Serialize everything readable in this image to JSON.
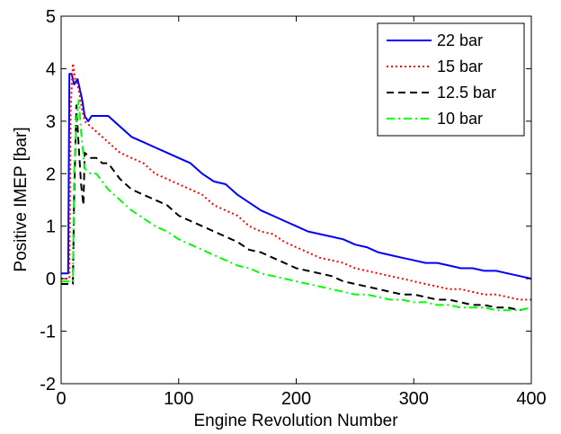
{
  "chart_data": {
    "type": "line",
    "title": "",
    "xlabel": "Engine Revolution Number",
    "ylabel": "Positive IMEP [bar]",
    "xlim": [
      0,
      400
    ],
    "ylim": [
      -2,
      5
    ],
    "xticks": [
      "0",
      "100",
      "200",
      "300",
      "400"
    ],
    "yticks": [
      "-2",
      "-1",
      "0",
      "1",
      "2",
      "3",
      "4",
      "5"
    ],
    "grid": false,
    "legend_position": "top-right",
    "series": [
      {
        "name": "22 bar",
        "color": "#0000ff",
        "style": "solid",
        "points": [
          [
            0,
            0.1
          ],
          [
            6,
            0.1
          ],
          [
            7,
            3.9
          ],
          [
            9,
            3.9
          ],
          [
            11,
            3.7
          ],
          [
            14,
            3.8
          ],
          [
            18,
            3.4
          ],
          [
            20,
            3.1
          ],
          [
            23,
            3.0
          ],
          [
            26,
            3.1
          ],
          [
            30,
            3.1
          ],
          [
            40,
            3.1
          ],
          [
            50,
            2.9
          ],
          [
            60,
            2.7
          ],
          [
            70,
            2.6
          ],
          [
            80,
            2.5
          ],
          [
            90,
            2.4
          ],
          [
            100,
            2.3
          ],
          [
            110,
            2.2
          ],
          [
            120,
            2.0
          ],
          [
            130,
            1.85
          ],
          [
            140,
            1.8
          ],
          [
            150,
            1.6
          ],
          [
            160,
            1.45
          ],
          [
            170,
            1.3
          ],
          [
            180,
            1.2
          ],
          [
            190,
            1.1
          ],
          [
            200,
            1.0
          ],
          [
            210,
            0.9
          ],
          [
            220,
            0.85
          ],
          [
            230,
            0.8
          ],
          [
            240,
            0.75
          ],
          [
            250,
            0.65
          ],
          [
            260,
            0.6
          ],
          [
            270,
            0.5
          ],
          [
            280,
            0.45
          ],
          [
            290,
            0.4
          ],
          [
            300,
            0.35
          ],
          [
            310,
            0.3
          ],
          [
            320,
            0.3
          ],
          [
            330,
            0.25
          ],
          [
            340,
            0.2
          ],
          [
            350,
            0.2
          ],
          [
            360,
            0.15
          ],
          [
            370,
            0.15
          ],
          [
            380,
            0.1
          ],
          [
            390,
            0.05
          ],
          [
            400,
            0.0
          ]
        ]
      },
      {
        "name": "15 bar",
        "color": "#ff0000",
        "style": "dotted",
        "points": [
          [
            0,
            0.0
          ],
          [
            7,
            0.0
          ],
          [
            8,
            3.2
          ],
          [
            10,
            4.1
          ],
          [
            12,
            3.8
          ],
          [
            15,
            3.6
          ],
          [
            18,
            3.2
          ],
          [
            20,
            3.0
          ],
          [
            25,
            2.9
          ],
          [
            30,
            2.8
          ],
          [
            40,
            2.6
          ],
          [
            50,
            2.4
          ],
          [
            60,
            2.3
          ],
          [
            70,
            2.2
          ],
          [
            80,
            2.0
          ],
          [
            90,
            1.9
          ],
          [
            100,
            1.8
          ],
          [
            110,
            1.7
          ],
          [
            120,
            1.6
          ],
          [
            130,
            1.4
          ],
          [
            140,
            1.3
          ],
          [
            150,
            1.2
          ],
          [
            160,
            1.0
          ],
          [
            170,
            0.9
          ],
          [
            180,
            0.85
          ],
          [
            190,
            0.7
          ],
          [
            200,
            0.6
          ],
          [
            210,
            0.5
          ],
          [
            220,
            0.4
          ],
          [
            230,
            0.35
          ],
          [
            240,
            0.3
          ],
          [
            250,
            0.2
          ],
          [
            260,
            0.15
          ],
          [
            270,
            0.1
          ],
          [
            280,
            0.05
          ],
          [
            290,
            0.0
          ],
          [
            300,
            -0.05
          ],
          [
            310,
            -0.1
          ],
          [
            320,
            -0.15
          ],
          [
            330,
            -0.2
          ],
          [
            340,
            -0.2
          ],
          [
            350,
            -0.25
          ],
          [
            360,
            -0.3
          ],
          [
            370,
            -0.3
          ],
          [
            380,
            -0.35
          ],
          [
            390,
            -0.4
          ],
          [
            400,
            -0.4
          ]
        ]
      },
      {
        "name": "12.5 bar",
        "color": "#000000",
        "style": "dashed",
        "points": [
          [
            0,
            -0.1
          ],
          [
            8,
            -0.1
          ],
          [
            10,
            -0.1
          ],
          [
            11,
            1.5
          ],
          [
            13,
            3.3
          ],
          [
            15,
            2.5
          ],
          [
            17,
            1.8
          ],
          [
            19,
            1.4
          ],
          [
            20,
            2.4
          ],
          [
            25,
            2.3
          ],
          [
            30,
            2.3
          ],
          [
            35,
            2.2
          ],
          [
            40,
            2.2
          ],
          [
            50,
            1.9
          ],
          [
            60,
            1.7
          ],
          [
            70,
            1.6
          ],
          [
            80,
            1.5
          ],
          [
            90,
            1.4
          ],
          [
            100,
            1.2
          ],
          [
            110,
            1.1
          ],
          [
            120,
            1.0
          ],
          [
            130,
            0.9
          ],
          [
            140,
            0.8
          ],
          [
            150,
            0.7
          ],
          [
            160,
            0.55
          ],
          [
            170,
            0.5
          ],
          [
            180,
            0.4
          ],
          [
            190,
            0.3
          ],
          [
            200,
            0.2
          ],
          [
            210,
            0.15
          ],
          [
            220,
            0.1
          ],
          [
            230,
            0.05
          ],
          [
            240,
            -0.05
          ],
          [
            250,
            -0.1
          ],
          [
            260,
            -0.15
          ],
          [
            270,
            -0.2
          ],
          [
            280,
            -0.25
          ],
          [
            290,
            -0.3
          ],
          [
            300,
            -0.3
          ],
          [
            310,
            -0.35
          ],
          [
            320,
            -0.4
          ],
          [
            330,
            -0.4
          ],
          [
            340,
            -0.45
          ],
          [
            350,
            -0.5
          ],
          [
            360,
            -0.5
          ],
          [
            370,
            -0.55
          ],
          [
            380,
            -0.55
          ],
          [
            390,
            -0.6
          ],
          [
            400,
            -0.55
          ]
        ]
      },
      {
        "name": "10 bar",
        "color": "#00ff00",
        "style": "dashdot",
        "points": [
          [
            0,
            -0.05
          ],
          [
            10,
            -0.05
          ],
          [
            11,
            2.0
          ],
          [
            13,
            3.0
          ],
          [
            15,
            3.4
          ],
          [
            17,
            2.8
          ],
          [
            20,
            2.1
          ],
          [
            25,
            2.0
          ],
          [
            30,
            2.0
          ],
          [
            40,
            1.7
          ],
          [
            50,
            1.5
          ],
          [
            60,
            1.3
          ],
          [
            70,
            1.15
          ],
          [
            80,
            1.0
          ],
          [
            90,
            0.9
          ],
          [
            100,
            0.75
          ],
          [
            110,
            0.65
          ],
          [
            120,
            0.55
          ],
          [
            130,
            0.45
          ],
          [
            140,
            0.35
          ],
          [
            150,
            0.25
          ],
          [
            160,
            0.2
          ],
          [
            170,
            0.1
          ],
          [
            180,
            0.05
          ],
          [
            190,
            0.0
          ],
          [
            200,
            -0.05
          ],
          [
            210,
            -0.1
          ],
          [
            220,
            -0.15
          ],
          [
            230,
            -0.2
          ],
          [
            240,
            -0.25
          ],
          [
            250,
            -0.3
          ],
          [
            260,
            -0.3
          ],
          [
            270,
            -0.35
          ],
          [
            280,
            -0.4
          ],
          [
            290,
            -0.4
          ],
          [
            300,
            -0.45
          ],
          [
            310,
            -0.45
          ],
          [
            320,
            -0.5
          ],
          [
            330,
            -0.5
          ],
          [
            340,
            -0.55
          ],
          [
            350,
            -0.55
          ],
          [
            360,
            -0.55
          ],
          [
            370,
            -0.6
          ],
          [
            380,
            -0.6
          ],
          [
            390,
            -0.6
          ],
          [
            400,
            -0.55
          ]
        ]
      }
    ]
  }
}
